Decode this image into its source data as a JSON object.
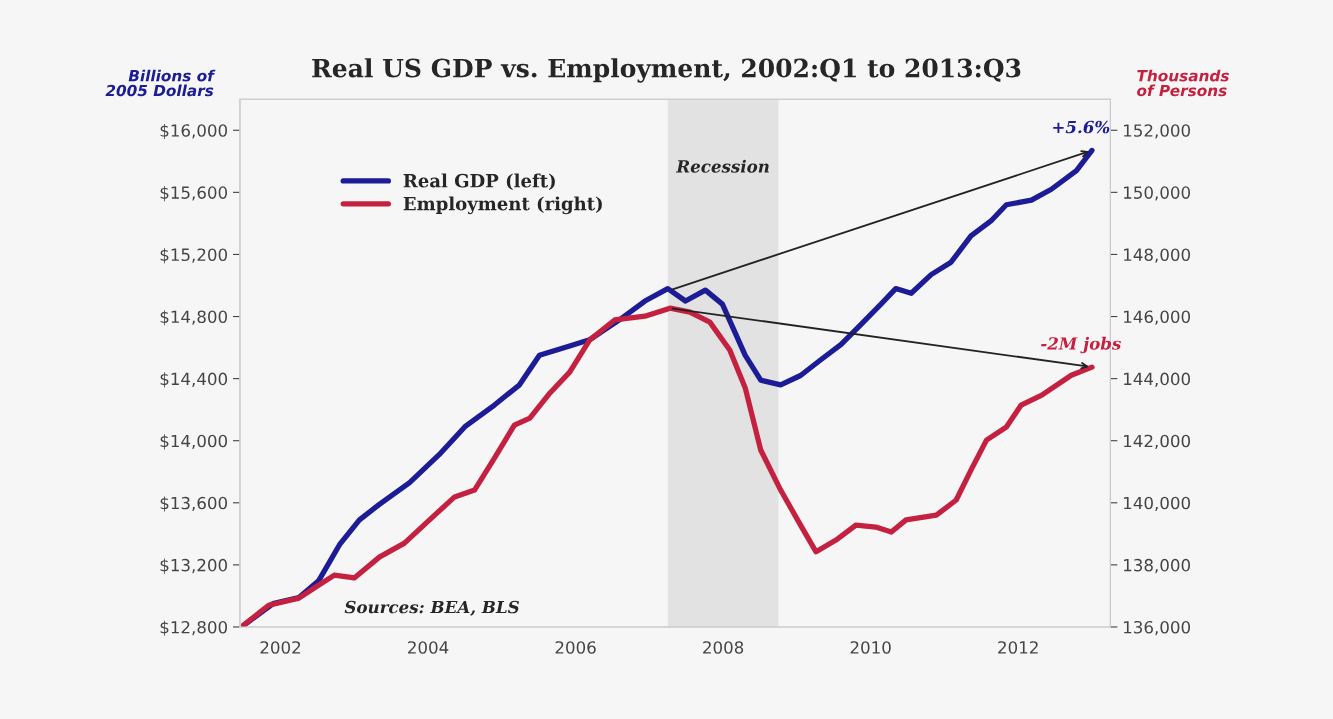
{
  "chart_data": {
    "type": "line",
    "title": "Real US GDP vs. Employment, 2002:Q1 to 2013:Q3",
    "ylabel": "Billions of\n2005 Dollars",
    "y2label": "Thousands\nof Persons",
    "series": [
      {
        "name": "Real GDP (left)",
        "color": "#1c1c96",
        "x": [
          2002.0,
          2002.4,
          2002.75,
          2003.02,
          2003.3,
          2003.57,
          2003.84,
          2004.25,
          2004.65,
          2005.0,
          2005.4,
          2005.74,
          2006.01,
          2006.42,
          2006.69,
          2007.1,
          2007.44,
          2007.75,
          2007.99,
          2008.26,
          2008.49,
          2008.8,
          2009.01,
          2009.28,
          2009.55,
          2009.82,
          2010.1,
          2010.37,
          2010.64,
          2010.84,
          2011.05,
          2011.32,
          2011.59,
          2011.86,
          2012.14,
          2012.34,
          2012.68,
          2012.95,
          2013.29,
          2013.5
        ],
        "values": [
          12810,
          12950,
          12990,
          13100,
          13330,
          13490,
          13590,
          13730,
          13910,
          14090,
          14230,
          14360,
          14550,
          14610,
          14650,
          14780,
          14900,
          14980,
          14900,
          14970,
          14880,
          14550,
          14390,
          14360,
          14420,
          14520,
          14620,
          14750,
          14880,
          14980,
          14950,
          15070,
          15150,
          15320,
          15420,
          15520,
          15550,
          15620,
          15740,
          15870
        ]
      },
      {
        "name": "Employment (right)",
        "color": "#c42040",
        "axis": "y2",
        "x": [
          2002.0,
          2002.34,
          2002.75,
          2003.02,
          2003.23,
          2003.5,
          2003.84,
          2004.18,
          2004.52,
          2004.86,
          2005.13,
          2005.4,
          2005.67,
          2005.88,
          2006.15,
          2006.42,
          2006.69,
          2007.03,
          2007.44,
          2007.78,
          2008.05,
          2008.32,
          2008.59,
          2008.8,
          2009.01,
          2009.28,
          2009.55,
          2009.76,
          2010.03,
          2010.3,
          2010.57,
          2010.78,
          2010.98,
          2011.39,
          2011.66,
          2011.86,
          2012.07,
          2012.34,
          2012.54,
          2012.82,
          2013.22,
          2013.5
        ],
        "values": [
          136060,
          136700,
          136930,
          137350,
          137670,
          137580,
          138250,
          138700,
          139450,
          140190,
          140410,
          141440,
          142500,
          142730,
          143530,
          144210,
          145240,
          145890,
          146010,
          146270,
          146140,
          145820,
          144920,
          143700,
          141700,
          140410,
          139280,
          138420,
          138800,
          139280,
          139220,
          139060,
          139450,
          139600,
          140090,
          141050,
          142020,
          142440,
          143150,
          143470,
          144110,
          144370
        ]
      }
    ],
    "xlim": [
      2001.95,
      2013.75
    ],
    "xticks": [
      {
        "value": 2002.5,
        "label": "2002"
      },
      {
        "value": 2004.5,
        "label": "2004"
      },
      {
        "value": 2006.5,
        "label": "2006"
      },
      {
        "value": 2008.5,
        "label": "2008"
      },
      {
        "value": 2010.5,
        "label": "2010"
      },
      {
        "value": 2012.5,
        "label": "2012"
      }
    ],
    "ylim": [
      12800,
      16200
    ],
    "yticks": [
      {
        "value": 12800,
        "label": "$12,800"
      },
      {
        "value": 13200,
        "label": "$13,200"
      },
      {
        "value": 13600,
        "label": "$13,600"
      },
      {
        "value": 14000,
        "label": "$14,000"
      },
      {
        "value": 14400,
        "label": "$14,400"
      },
      {
        "value": 14800,
        "label": "$14,800"
      },
      {
        "value": 15200,
        "label": "$15,200"
      },
      {
        "value": 15600,
        "label": "$15,600"
      },
      {
        "value": 16000,
        "label": "$16,000"
      }
    ],
    "y2lim": [
      136000,
      153000
    ],
    "y2ticks": [
      {
        "value": 136000,
        "label": "136,000"
      },
      {
        "value": 138000,
        "label": "138,000"
      },
      {
        "value": 140000,
        "label": "140,000"
      },
      {
        "value": 142000,
        "label": "142,000"
      },
      {
        "value": 144000,
        "label": "144,000"
      },
      {
        "value": 146000,
        "label": "146,000"
      },
      {
        "value": 148000,
        "label": "148,000"
      },
      {
        "value": 150000,
        "label": "150,000"
      },
      {
        "value": 152000,
        "label": "152,000"
      }
    ],
    "bands": [
      {
        "axis": "x",
        "from": 2007.75,
        "to": 2009.25,
        "label": "Recession",
        "color": "#e2e2e2"
      }
    ],
    "annotations": [
      {
        "text": "+5.6%",
        "x": 2013.5,
        "y": 15870
      },
      "-2M jobs",
      "Sources: BEA, BLS"
    ],
    "grid": false,
    "legend": "top left",
    "marker": "none",
    "line_style": "solid"
  }
}
